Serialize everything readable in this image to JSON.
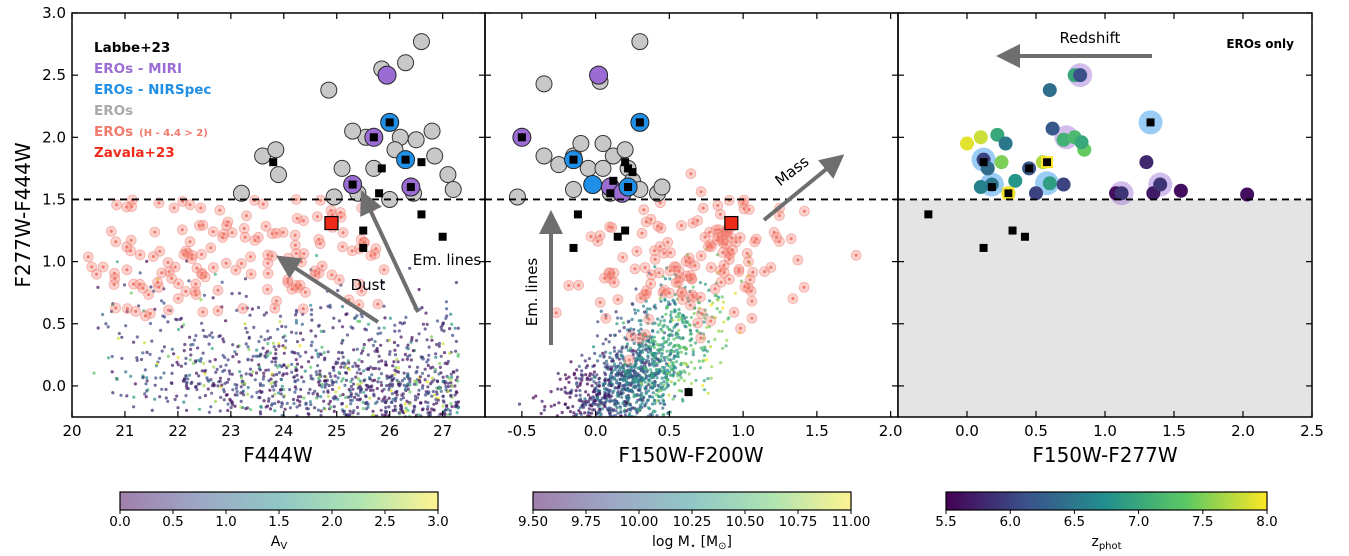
{
  "ylabel": "F277W-F444W",
  "yticks": [
    "0.0",
    "0.5",
    "1.0",
    "1.5",
    "2.0",
    "2.5",
    "3.0"
  ],
  "y_range": [
    -0.25,
    3.0
  ],
  "threshold_y": 1.5,
  "colors": {
    "labbe": "#000000",
    "miri": "#9b6dd4",
    "nirspec": "#1f8fe8",
    "eros": "#c8c8c8",
    "eros_h": "#f27a6d",
    "zavala": "#ee2a1b",
    "shade": "#e4e4e4"
  },
  "chart_data": [
    {
      "type": "scatter",
      "xlabel": "F444W",
      "x_range": [
        20,
        27.8
      ],
      "xticks": [
        "20",
        "21",
        "22",
        "23",
        "24",
        "25",
        "26",
        "27"
      ],
      "legend": [
        {
          "label": "Labbe+23",
          "color": "#000000"
        },
        {
          "label": "EROs - MIRI",
          "color": "#9b6dd4"
        },
        {
          "label": "EROs - NIRSpec",
          "color": "#1f8fe8"
        },
        {
          "label": "EROs",
          "color": "#aaaaaa"
        },
        {
          "label": "EROs",
          "suffix": "(H - 4.4 > 2)",
          "color": "#f27a6d"
        },
        {
          "label": "Zavala+23",
          "color": "#ee2a1b"
        }
      ],
      "annotations": [
        "Em. lines",
        "Dust"
      ],
      "colorbar": {
        "label": "A",
        "label_sub": "V",
        "ticks": [
          "0.0",
          "0.5",
          "1.0",
          "1.5",
          "2.0",
          "2.5",
          "3.0"
        ],
        "range": [
          0,
          3
        ]
      },
      "eros": [
        [
          23.2,
          1.55
        ],
        [
          23.6,
          1.85
        ],
        [
          23.9,
          1.7
        ],
        [
          23.85,
          1.9
        ],
        [
          24.85,
          2.38
        ],
        [
          25.1,
          1.75
        ],
        [
          25.4,
          1.55
        ],
        [
          25.55,
          2.0
        ],
        [
          25.7,
          1.75
        ],
        [
          26.2,
          2.0
        ],
        [
          26.6,
          2.77
        ],
        [
          26.3,
          2.6
        ],
        [
          26.8,
          2.05
        ],
        [
          26.85,
          1.85
        ],
        [
          27.1,
          1.7
        ],
        [
          27.2,
          1.58
        ],
        [
          26.45,
          1.55
        ],
        [
          26.0,
          1.5
        ],
        [
          24.95,
          1.52
        ],
        [
          25.85,
          2.55
        ],
        [
          26.1,
          1.9
        ],
        [
          26.5,
          1.98
        ],
        [
          25.3,
          2.05
        ]
      ],
      "miri": [
        [
          25.95,
          2.5
        ],
        [
          25.7,
          2.0
        ],
        [
          25.3,
          1.62
        ],
        [
          26.4,
          1.6
        ]
      ],
      "nirspec": [
        [
          26.0,
          2.12
        ],
        [
          26.3,
          1.82
        ]
      ],
      "labbe": [
        [
          23.8,
          1.8
        ],
        [
          25.3,
          1.62
        ],
        [
          25.7,
          2.0
        ],
        [
          26.0,
          2.12
        ],
        [
          26.3,
          1.82
        ],
        [
          25.8,
          1.55
        ],
        [
          26.4,
          1.6
        ],
        [
          25.85,
          1.75
        ],
        [
          26.6,
          1.8
        ],
        [
          25.5,
          1.25
        ],
        [
          25.5,
          1.11
        ],
        [
          26.6,
          1.38
        ],
        [
          27.0,
          1.2
        ]
      ],
      "zavala": [
        [
          24.9,
          1.31
        ]
      ]
    },
    {
      "type": "scatter",
      "xlabel": "F150W-F200W",
      "x_range": [
        -0.75,
        2.05
      ],
      "xticks": [
        "-0.5",
        "0.0",
        "0.5",
        "1.0",
        "1.5",
        "2.0"
      ],
      "annotations": [
        "Em. lines",
        "Mass"
      ],
      "colorbar": {
        "label": "log M",
        "label_sub": "⋆",
        "label_unit": " [M",
        "label_unit_sub": "⊙",
        "label_end": "]",
        "ticks": [
          "9.50",
          "9.75",
          "10.00",
          "10.25",
          "10.50",
          "10.75",
          "11.00"
        ],
        "range": [
          9.5,
          11.0
        ]
      },
      "eros": [
        [
          -0.53,
          1.52
        ],
        [
          -0.35,
          2.43
        ],
        [
          -0.35,
          1.85
        ],
        [
          -0.25,
          1.78
        ],
        [
          -0.15,
          1.85
        ],
        [
          -0.1,
          1.95
        ],
        [
          -0.05,
          1.75
        ],
        [
          -0.02,
          1.62
        ],
        [
          0.03,
          2.45
        ],
        [
          0.05,
          1.95
        ],
        [
          0.1,
          1.55
        ],
        [
          0.12,
          1.85
        ],
        [
          0.2,
          1.9
        ],
        [
          0.22,
          1.75
        ],
        [
          0.25,
          1.65
        ],
        [
          0.3,
          2.77
        ],
        [
          0.3,
          1.58
        ],
        [
          0.42,
          1.55
        ],
        [
          0.45,
          1.6
        ],
        [
          -0.15,
          1.58
        ],
        [
          0.05,
          1.75
        ]
      ],
      "miri": [
        [
          0.02,
          2.5
        ],
        [
          -0.5,
          2.0
        ],
        [
          0.1,
          1.6
        ],
        [
          0.18,
          1.55
        ]
      ],
      "nirspec": [
        [
          0.3,
          2.12
        ],
        [
          -0.15,
          1.82
        ],
        [
          -0.02,
          1.62
        ],
        [
          0.22,
          1.6
        ]
      ],
      "labbe": [
        [
          -0.5,
          2.0
        ],
        [
          0.3,
          2.12
        ],
        [
          -0.15,
          1.82
        ],
        [
          0.2,
          1.8
        ],
        [
          0.22,
          1.75
        ],
        [
          0.1,
          1.55
        ],
        [
          0.22,
          1.6
        ],
        [
          -0.12,
          1.38
        ],
        [
          0.15,
          1.2
        ],
        [
          0.2,
          1.25
        ],
        [
          -0.15,
          1.11
        ],
        [
          0.63,
          -0.05
        ],
        [
          0.25,
          1.72
        ],
        [
          0.12,
          1.65
        ]
      ],
      "zavala": [
        [
          0.92,
          1.31
        ]
      ]
    },
    {
      "type": "scatter",
      "xlabel": "F150W-F277W",
      "x_range": [
        -0.5,
        2.5
      ],
      "xticks": [
        "0.0",
        "0.5",
        "1.0",
        "1.5",
        "2.0",
        "2.5"
      ],
      "annotations": [
        "Redshift",
        "EROs only"
      ],
      "colorbar": {
        "label": "z",
        "label_sub": "phot",
        "ticks": [
          "5.5",
          "6.0",
          "6.5",
          "7.0",
          "7.5",
          "8.0"
        ],
        "range": [
          5.5,
          8.0
        ]
      },
      "points": [
        [
          0.0,
          1.95,
          7.9
        ],
        [
          0.1,
          2.0,
          7.8
        ],
        [
          0.22,
          2.02,
          7.0
        ],
        [
          0.6,
          2.38,
          6.4
        ],
        [
          0.62,
          2.07,
          6.2
        ],
        [
          0.7,
          1.98,
          7.1
        ],
        [
          0.78,
          2.0,
          7.2
        ],
        [
          0.78,
          2.5,
          7.0
        ],
        [
          0.82,
          2.5,
          6.1
        ],
        [
          0.85,
          1.9,
          7.4
        ],
        [
          0.45,
          1.75,
          6.2
        ],
        [
          0.5,
          1.55,
          6.0
        ],
        [
          0.3,
          1.55,
          7.8
        ],
        [
          0.12,
          1.82,
          6.0
        ],
        [
          0.15,
          1.75,
          6.4
        ],
        [
          0.18,
          1.62,
          6.5
        ],
        [
          0.25,
          1.8,
          7.5
        ],
        [
          0.28,
          1.95,
          6.5
        ],
        [
          0.35,
          1.65,
          6.8
        ],
        [
          0.55,
          1.8,
          7.7
        ],
        [
          0.6,
          1.63,
          6.9
        ],
        [
          0.7,
          1.62,
          6.0
        ],
        [
          1.08,
          1.55,
          5.6
        ],
        [
          1.12,
          1.55,
          5.9
        ],
        [
          1.35,
          1.55,
          5.7
        ],
        [
          1.4,
          1.62,
          5.9
        ],
        [
          1.55,
          1.57,
          5.6
        ],
        [
          2.03,
          1.54,
          5.6
        ],
        [
          1.3,
          1.8,
          5.8
        ],
        [
          0.83,
          1.96,
          7.0
        ],
        [
          0.1,
          1.6,
          6.6
        ]
      ],
      "halo_miri": [
        [
          0.82,
          2.5
        ],
        [
          0.72,
          2.0
        ],
        [
          1.12,
          1.55
        ],
        [
          1.4,
          1.62
        ]
      ],
      "halo_nirspec": [
        [
          1.33,
          2.12
        ],
        [
          0.12,
          1.82
        ],
        [
          0.18,
          1.62
        ],
        [
          0.58,
          1.63
        ]
      ],
      "labbe": [
        [
          -0.28,
          1.38
        ],
        [
          0.12,
          1.11
        ],
        [
          0.33,
          1.25
        ],
        [
          0.42,
          1.2
        ],
        [
          0.3,
          1.55
        ],
        [
          0.18,
          1.6
        ],
        [
          0.12,
          1.8
        ],
        [
          0.45,
          1.75
        ],
        [
          0.58,
          1.8
        ],
        [
          1.33,
          2.12
        ]
      ],
      "labbe_yellow": [
        [
          0.3,
          1.55
        ],
        [
          0.58,
          1.8
        ]
      ]
    }
  ]
}
